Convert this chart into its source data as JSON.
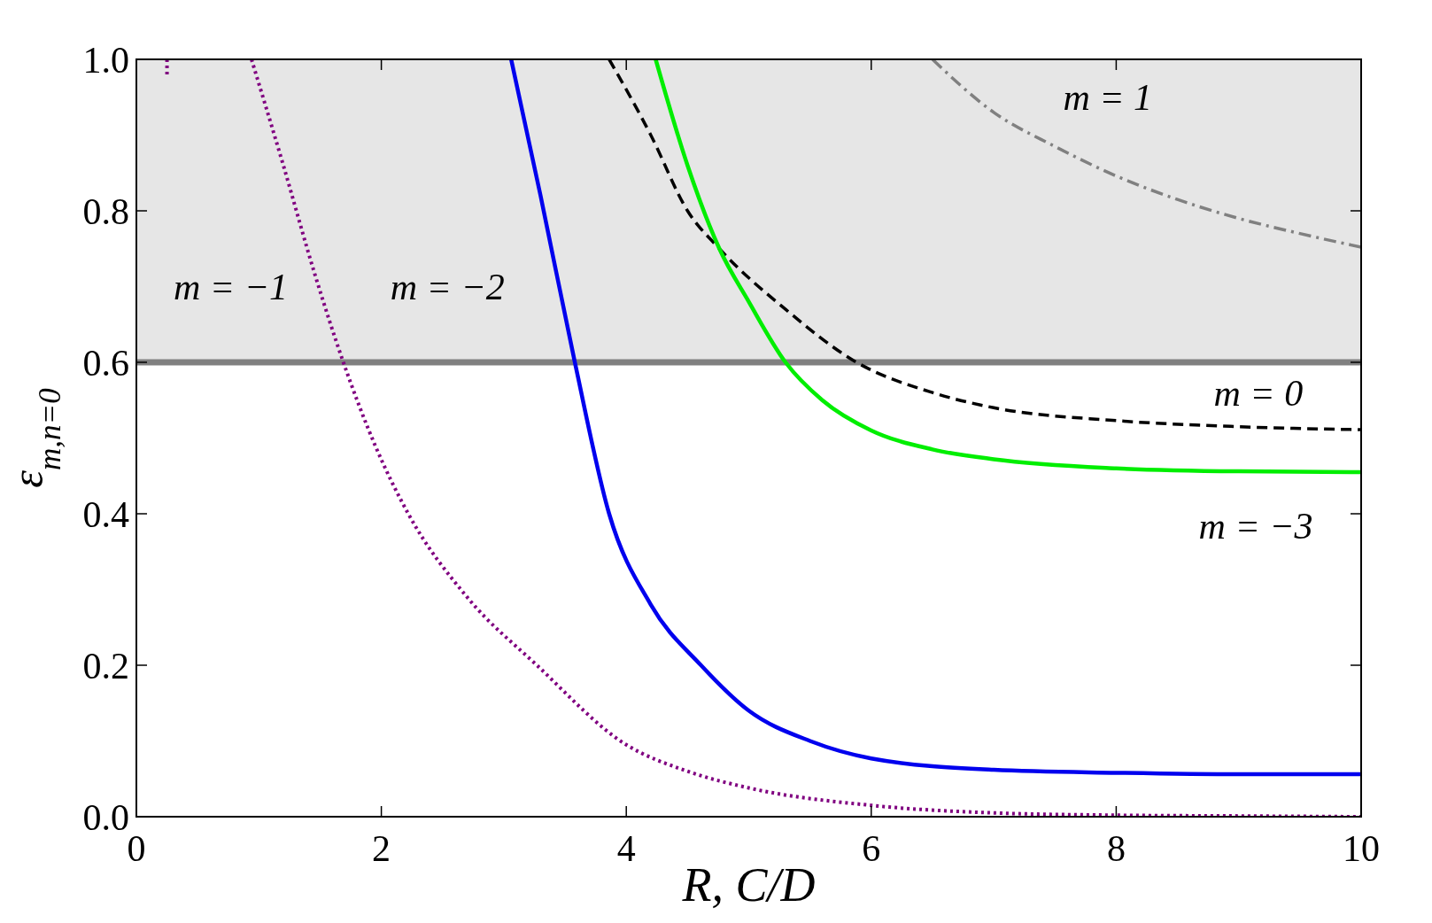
{
  "chart_data": {
    "type": "line",
    "xlabel": "R, C/D",
    "ylabel": "ε$_{m,n=0}$",
    "xlim": [
      0,
      10
    ],
    "ylim": [
      0,
      1
    ],
    "xticks": [
      0,
      2,
      4,
      6,
      8,
      10
    ],
    "yticks": [
      {
        "value": 0,
        "label": "0.0"
      },
      {
        "value": 0.2,
        "label": "0.2"
      },
      {
        "value": 0.4,
        "label": "0.4"
      },
      {
        "value": 0.6,
        "label": "0.6"
      },
      {
        "value": 0.8,
        "label": "0.8"
      },
      {
        "value": 1,
        "label": "1.0"
      }
    ],
    "grid": false,
    "marker": "none",
    "bands": [
      {
        "axis": "y",
        "from": 0.6,
        "to": 1,
        "color": "#e6e6e6"
      }
    ],
    "ref_lines": [
      {
        "axis": "y",
        "value": 0.6,
        "color": "#808080",
        "line_style": "solid"
      }
    ],
    "series": [
      {
        "color": "#800080",
        "line_style": "dotted",
        "x": [
          0.25,
          0.25
        ],
        "values": [
          1,
          0.98
        ]
      },
      {
        "color": "#800080",
        "line_style": "dotted",
        "x": [
          0.94,
          1.2,
          1.45,
          1.69,
          1.95,
          2.22,
          2.7,
          3.27,
          4,
          4.5,
          5,
          6,
          7,
          8,
          9,
          10
        ],
        "values": [
          1,
          0.86,
          0.72,
          0.6,
          0.49,
          0.4,
          0.29,
          0.2,
          0.095,
          0.06,
          0.038,
          0.015,
          0.005,
          0.002,
          0.001,
          0
        ]
      },
      {
        "color": "#0000ee",
        "line_style": "solid",
        "x": [
          3.06,
          3.3,
          3.58,
          3.86,
          4.2,
          4.61,
          5,
          5.5,
          6,
          7,
          8,
          9,
          10
        ],
        "values": [
          1,
          0.82,
          0.6,
          0.4,
          0.28,
          0.2,
          0.14,
          0.1,
          0.077,
          0.062,
          0.058,
          0.056,
          0.056
        ]
      },
      {
        "color": "#000000",
        "line_style": "dashed",
        "x": [
          3.86,
          4.2,
          4.5,
          4.76,
          5.3,
          5.88,
          6.5,
          7,
          8,
          9,
          10
        ],
        "values": [
          1,
          0.9,
          0.8,
          0.75,
          0.67,
          0.6,
          0.56,
          0.54,
          0.523,
          0.515,
          0.511
        ]
      },
      {
        "color": "#00ee00",
        "line_style": "solid",
        "x": [
          4.24,
          4.5,
          4.76,
          5,
          5.3,
          5.6,
          6,
          6.5,
          7,
          8,
          9,
          10
        ],
        "values": [
          1,
          0.86,
          0.75,
          0.68,
          0.6,
          0.55,
          0.51,
          0.485,
          0.472,
          0.46,
          0.456,
          0.455
        ]
      },
      {
        "color": "#808080",
        "line_style": "dashdot",
        "x": [
          6.5,
          7,
          7.5,
          8,
          8.5,
          9,
          9.5,
          10
        ],
        "values": [
          1,
          0.93,
          0.885,
          0.846,
          0.815,
          0.79,
          0.77,
          0.752
        ]
      }
    ],
    "annotations": [
      "m = 1",
      "m = −1",
      "m = −2",
      "m = 0",
      "m = −3"
    ]
  }
}
